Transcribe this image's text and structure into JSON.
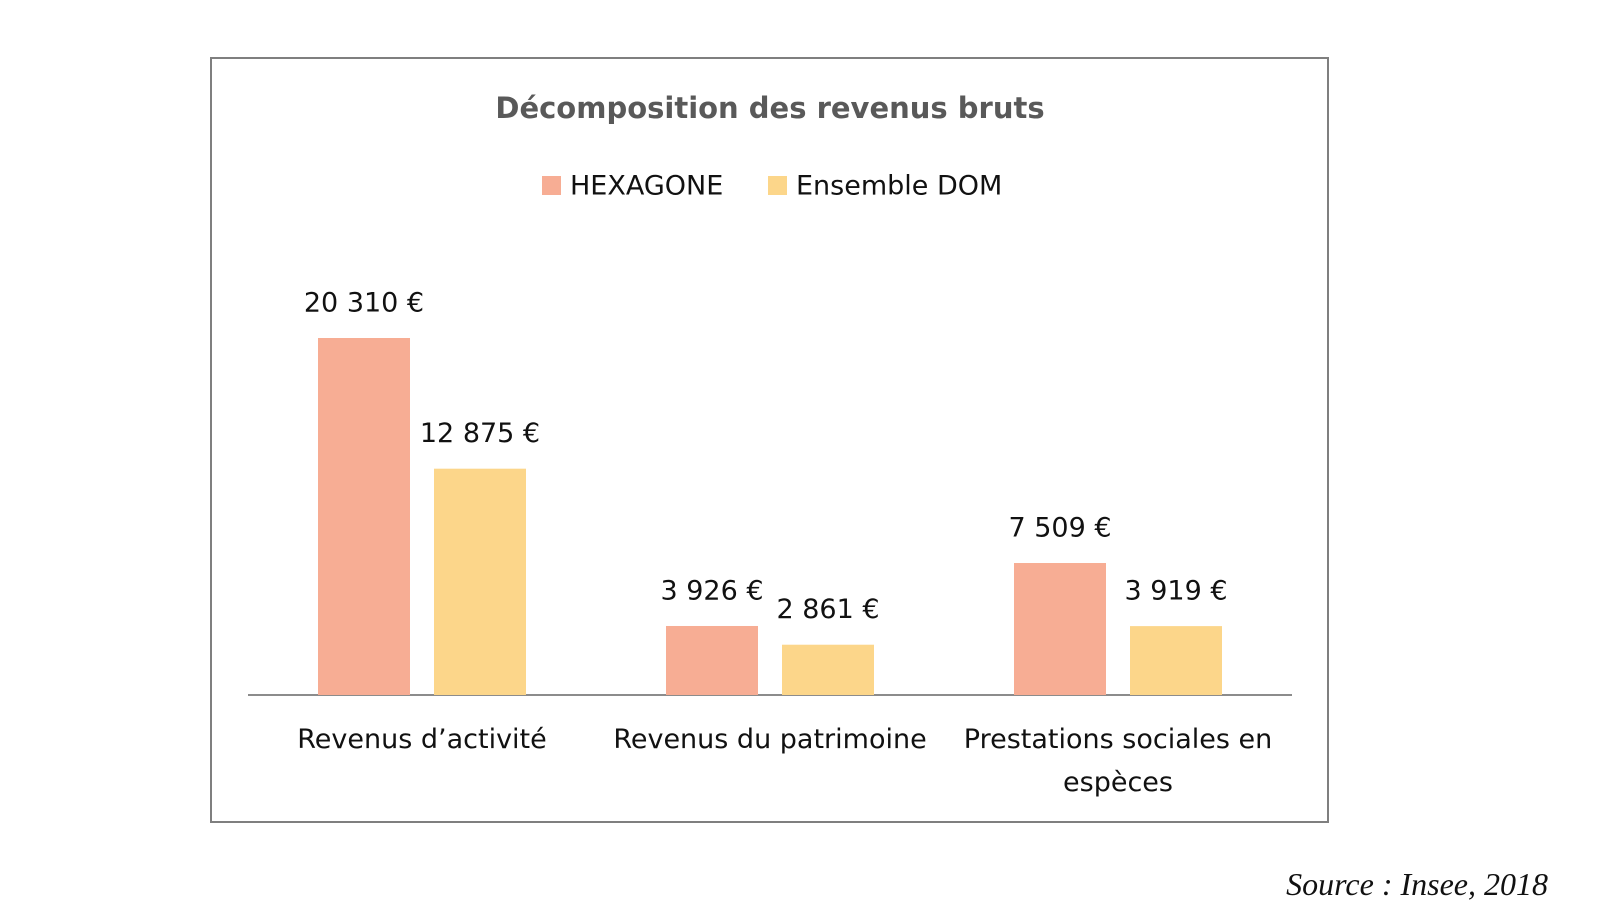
{
  "chart_data": {
    "type": "bar",
    "title": "Décomposition des revenus bruts",
    "categories": [
      "Revenus d’activité",
      "Revenus du patrimoine",
      "Prestations sociales en espèces"
    ],
    "series": [
      {
        "name": "HEXAGONE",
        "color": "#f7ad94",
        "values": [
          20310,
          3926,
          7509
        ],
        "value_labels": [
          "20 310 €",
          "3 926 €",
          "7 509 €"
        ]
      },
      {
        "name": "Ensemble DOM",
        "color": "#fcd68a",
        "values": [
          12875,
          2861,
          3919
        ],
        "value_labels": [
          "12 875 €",
          "2 861 €",
          "3 919 €"
        ]
      }
    ],
    "legend": "top",
    "source": "Source : Insee, 2018"
  }
}
